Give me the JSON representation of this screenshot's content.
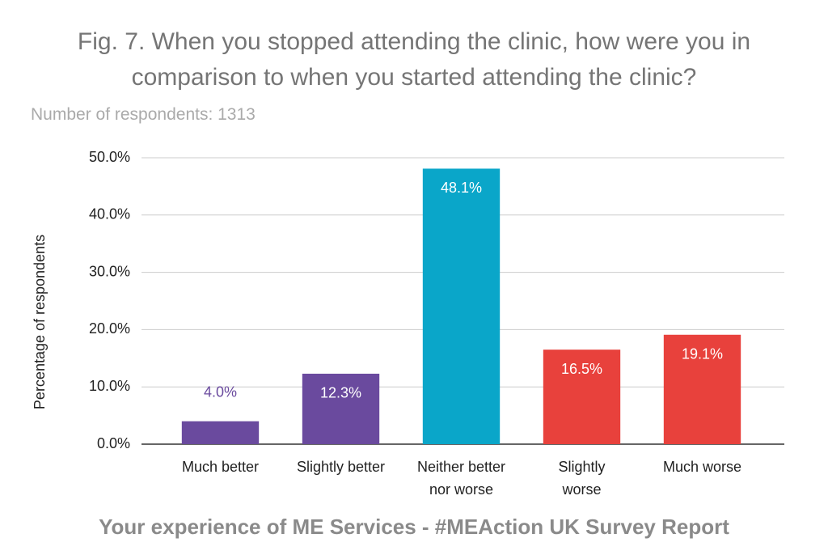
{
  "chart_data": {
    "type": "bar",
    "title": "Fig. 7. When you stopped attending the clinic, how were you in\ncomparison to when you started attending the clinic?",
    "subtitle": "Number of respondents: 1313",
    "y_label": "Percentage of respondents",
    "caption": "Your experience of ME Services - #MEAction UK Survey Report",
    "categories": [
      "Much better",
      "Slightly better",
      "Neither better\nnor worse",
      "Slightly\nworse",
      "Much worse"
    ],
    "values": [
      4.0,
      12.3,
      48.1,
      16.5,
      19.1
    ],
    "value_labels": [
      "4.0%",
      "12.3%",
      "48.1%",
      "16.5%",
      "19.1%"
    ],
    "colors": [
      "#6a4a9e",
      "#6a4a9e",
      "#0aa6c9",
      "#e8413c",
      "#e8413c"
    ],
    "ylim": [
      0,
      50
    ],
    "yticks": [
      {
        "value": 0,
        "label": "0.0%"
      },
      {
        "value": 10,
        "label": "10.0%"
      },
      {
        "value": 20,
        "label": "20.0%"
      },
      {
        "value": 30,
        "label": "30.0%"
      },
      {
        "value": 40,
        "label": "40.0%"
      },
      {
        "value": 50,
        "label": "50.0%"
      }
    ],
    "grid": true
  }
}
